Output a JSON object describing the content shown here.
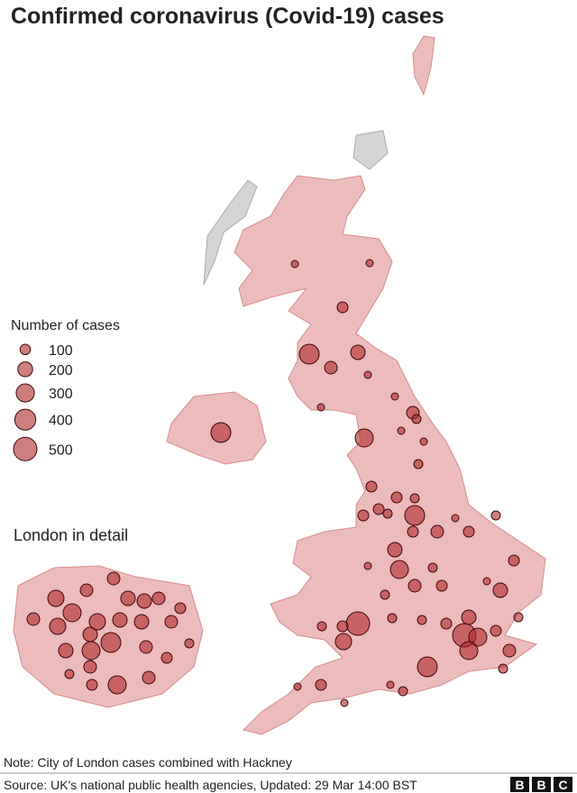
{
  "header": {
    "title": "Confirmed coronavirus (Covid-19) cases"
  },
  "legend": {
    "title": "Number of cases",
    "items": [
      100,
      200,
      300,
      400,
      500
    ]
  },
  "inset": {
    "title": "London in detail"
  },
  "footer": {
    "note": "Note: City of London cases combined with Hackney",
    "source": "Source: UK's national public health agencies, Updated: 29 Mar 14:00 BST",
    "logo": [
      "B",
      "B",
      "C"
    ]
  }
}
